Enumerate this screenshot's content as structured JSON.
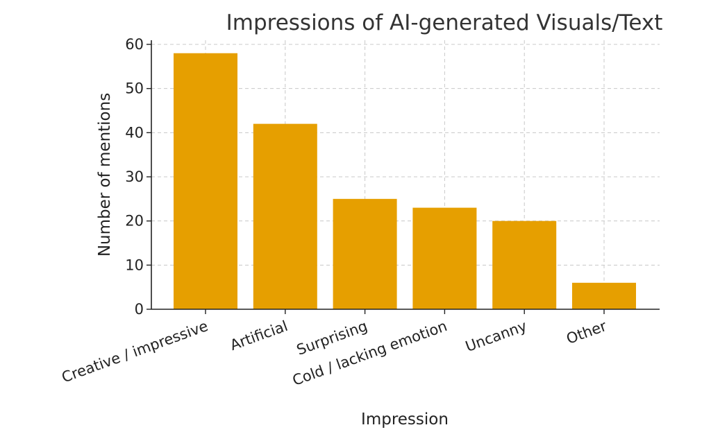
{
  "chart_data": {
    "type": "bar",
    "title": "Impressions of AI-generated Visuals/Text",
    "xlabel": "Impression",
    "ylabel": "Number of mentions",
    "categories": [
      "Creative / impressive",
      "Artificial",
      "Surprising",
      "Cold / lacking emotion",
      "Uncanny",
      "Other"
    ],
    "values": [
      58,
      42,
      25,
      23,
      20,
      6
    ],
    "ylim": [
      0,
      60
    ],
    "yticks": [
      0,
      10,
      20,
      30,
      40,
      50,
      60
    ],
    "grid": true,
    "bar_color": "#e69f00"
  }
}
